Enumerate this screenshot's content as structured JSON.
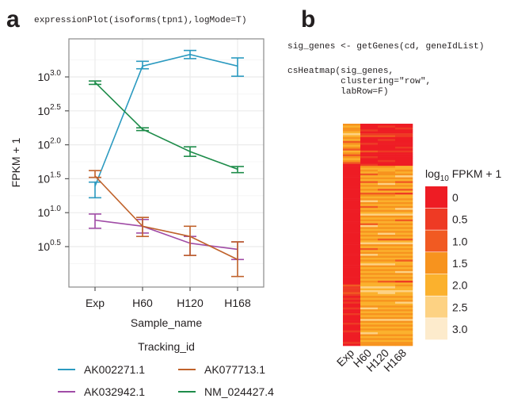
{
  "panel_a": {
    "letter": "a",
    "code": "expressionPlot(isoforms(tpn1),logMode=T)"
  },
  "panel_b": {
    "letter": "b",
    "code_line1": "sig_genes <- getGenes(cd, geneIdList)",
    "code_line2": "csHeatmap(sig_genes,",
    "code_line3": "          clustering=\"row\",",
    "code_line4": "          labRow=F)"
  },
  "chart_data": [
    {
      "type": "line",
      "title": "",
      "xlabel": "Sample_name",
      "ylabel": "FPKM + 1",
      "y_scale": "log10",
      "ylim_log10": [
        0.05,
        3.55
      ],
      "grid": true,
      "categories": [
        "Exp",
        "H60",
        "H120",
        "H168"
      ],
      "y_ticks": [
        {
          "value": 3.0,
          "label_base": "10",
          "label_exp": "3.0"
        },
        {
          "value": 2.5,
          "label_base": "10",
          "label_exp": "2.5"
        },
        {
          "value": 2.0,
          "label_base": "10",
          "label_exp": "2.0"
        },
        {
          "value": 1.5,
          "label_base": "10",
          "label_exp": "1.5"
        },
        {
          "value": 1.0,
          "label_base": "10",
          "label_exp": "1.0"
        },
        {
          "value": 0.5,
          "label_base": "10",
          "label_exp": "0.5"
        }
      ],
      "legend_title": "Tracking_id",
      "legend_position": "bottom",
      "series": [
        {
          "name": "AK002271.1",
          "color": "#2b9ac0",
          "log10_values": [
            1.39,
            3.16,
            3.33,
            3.16
          ],
          "log10_err_low": [
            1.22,
            3.12,
            3.27,
            3.01
          ],
          "log10_err_high": [
            1.45,
            3.23,
            3.39,
            3.28
          ]
        },
        {
          "name": "AK077713.1",
          "color": "#c0622b",
          "log10_values": [
            1.54,
            0.8,
            0.65,
            0.31
          ],
          "log10_err_low": [
            1.52,
            0.65,
            0.37,
            0.06
          ],
          "log10_err_high": [
            1.62,
            0.93,
            0.8,
            0.57
          ]
        },
        {
          "name": "AK032942.1",
          "color": "#a04ca6",
          "log10_values": [
            0.89,
            0.8,
            0.55,
            0.46
          ],
          "log10_err_low": [
            0.77,
            0.7,
            0.37,
            0.31
          ],
          "log10_err_high": [
            0.98,
            0.9,
            0.65,
            0.57
          ]
        },
        {
          "name": "NM_024427.4",
          "color": "#1e8c4a",
          "log10_values": [
            2.92,
            2.23,
            1.9,
            1.64
          ],
          "log10_err_low": [
            2.89,
            2.21,
            1.83,
            1.59
          ],
          "log10_err_high": [
            2.94,
            2.25,
            1.97,
            1.68
          ]
        }
      ]
    },
    {
      "type": "heatmap",
      "title": "",
      "columns": [
        "Exp",
        "H60",
        "H120",
        "H168"
      ],
      "legend_title_base": "log",
      "legend_title_sub": "10",
      "legend_title_rest": " FPKM + 1",
      "legend_levels": [
        {
          "label": "0",
          "color": "#ee1c24"
        },
        {
          "label": "0.5",
          "color": "#ee3a24"
        },
        {
          "label": "1.0",
          "color": "#f15a22"
        },
        {
          "label": "1.5",
          "color": "#f7931e"
        },
        {
          "label": "2.0",
          "color": "#fbb12d"
        },
        {
          "label": "2.5",
          "color": "#fdd283"
        },
        {
          "label": "3.0",
          "color": "#fdebcc"
        }
      ],
      "row_levels": [
        [
          3,
          0,
          0,
          0
        ],
        [
          4,
          0,
          1,
          0
        ],
        [
          3,
          0,
          0,
          1
        ],
        [
          3,
          1,
          0,
          0
        ],
        [
          4,
          0,
          0,
          0
        ],
        [
          5,
          1,
          1,
          1
        ],
        [
          4,
          2,
          2,
          1
        ],
        [
          3,
          0,
          0,
          0
        ],
        [
          4,
          0,
          1,
          0
        ],
        [
          2,
          0,
          0,
          0
        ],
        [
          3,
          1,
          0,
          0
        ],
        [
          4,
          0,
          0,
          0
        ],
        [
          3,
          0,
          0,
          1
        ],
        [
          2,
          0,
          0,
          0
        ],
        [
          4,
          2,
          1,
          1
        ],
        [
          3,
          0,
          0,
          0
        ],
        [
          2,
          0,
          0,
          0
        ],
        [
          3,
          1,
          0,
          0
        ],
        [
          4,
          0,
          0,
          0
        ],
        [
          3,
          0,
          1,
          0
        ],
        [
          2,
          0,
          0,
          0
        ],
        [
          0,
          1,
          0,
          0
        ],
        [
          0,
          3,
          3,
          4
        ],
        [
          0,
          4,
          4,
          4
        ],
        [
          0,
          3,
          4,
          3
        ],
        [
          0,
          4,
          3,
          4
        ],
        [
          0,
          2,
          3,
          3
        ],
        [
          0,
          4,
          4,
          5
        ],
        [
          0,
          3,
          3,
          3
        ],
        [
          0,
          4,
          4,
          4
        ],
        [
          0,
          2,
          3,
          2
        ],
        [
          0,
          4,
          5,
          4
        ],
        [
          0,
          3,
          3,
          3
        ],
        [
          0,
          4,
          4,
          4
        ],
        [
          0,
          3,
          2,
          2
        ],
        [
          0,
          4,
          4,
          4
        ],
        [
          0,
          2,
          2,
          1
        ],
        [
          0,
          3,
          3,
          4
        ],
        [
          0,
          4,
          4,
          4
        ],
        [
          0,
          3,
          3,
          3
        ],
        [
          0,
          5,
          4,
          4
        ],
        [
          0,
          3,
          3,
          3
        ],
        [
          0,
          4,
          4,
          4
        ],
        [
          0,
          2,
          3,
          3
        ],
        [
          0,
          4,
          4,
          5
        ],
        [
          0,
          3,
          3,
          3
        ],
        [
          0,
          4,
          4,
          4
        ],
        [
          0,
          5,
          5,
          5
        ],
        [
          0,
          3,
          3,
          3
        ],
        [
          0,
          4,
          4,
          4
        ],
        [
          0,
          3,
          3,
          2
        ],
        [
          0,
          4,
          4,
          4
        ],
        [
          0,
          2,
          3,
          3
        ],
        [
          0,
          5,
          4,
          4
        ],
        [
          0,
          3,
          3,
          3
        ],
        [
          0,
          4,
          4,
          4
        ],
        [
          0,
          3,
          3,
          3
        ],
        [
          0,
          4,
          5,
          4
        ],
        [
          0,
          3,
          3,
          3
        ],
        [
          0,
          4,
          4,
          4
        ],
        [
          0,
          3,
          2,
          2
        ],
        [
          0,
          4,
          4,
          4
        ],
        [
          0,
          5,
          5,
          5
        ],
        [
          0,
          3,
          3,
          3
        ],
        [
          0,
          4,
          4,
          4
        ],
        [
          0,
          2,
          3,
          3
        ],
        [
          0,
          4,
          4,
          4
        ],
        [
          0,
          3,
          3,
          3
        ],
        [
          0,
          5,
          4,
          4
        ],
        [
          0,
          3,
          3,
          3
        ],
        [
          0,
          4,
          4,
          4
        ],
        [
          0,
          3,
          3,
          2
        ],
        [
          0,
          4,
          4,
          4
        ],
        [
          0,
          5,
          5,
          4
        ],
        [
          0,
          3,
          3,
          3
        ],
        [
          0,
          4,
          4,
          4
        ],
        [
          0,
          3,
          3,
          3
        ],
        [
          0,
          4,
          4,
          5
        ],
        [
          0,
          3,
          3,
          3
        ],
        [
          0,
          4,
          4,
          4
        ],
        [
          0,
          3,
          3,
          3
        ],
        [
          0,
          4,
          4,
          4
        ],
        [
          0,
          3,
          2,
          1
        ],
        [
          0,
          4,
          4,
          4
        ],
        [
          2,
          4,
          4,
          3
        ],
        [
          1,
          5,
          5,
          4
        ],
        [
          1,
          4,
          4,
          4
        ],
        [
          1,
          5,
          5,
          5
        ],
        [
          2,
          4,
          5,
          4
        ],
        [
          1,
          4,
          4,
          4
        ],
        [
          0,
          3,
          3,
          3
        ],
        [
          1,
          4,
          4,
          4
        ],
        [
          0,
          3,
          3,
          3
        ],
        [
          1,
          4,
          4,
          5
        ],
        [
          0,
          4,
          4,
          4
        ],
        [
          0,
          3,
          3,
          3
        ],
        [
          1,
          5,
          4,
          4
        ],
        [
          0,
          3,
          3,
          3
        ],
        [
          0,
          4,
          4,
          4
        ],
        [
          1,
          3,
          3,
          3
        ],
        [
          0,
          4,
          4,
          4
        ],
        [
          0,
          3,
          3,
          3
        ],
        [
          0,
          5,
          5,
          5
        ],
        [
          0,
          3,
          3,
          3
        ],
        [
          1,
          4,
          4,
          4
        ],
        [
          0,
          3,
          3,
          3
        ],
        [
          0,
          4,
          4,
          4
        ],
        [
          0,
          3,
          3,
          3
        ],
        [
          1,
          4,
          4,
          4
        ],
        [
          0,
          5,
          4,
          4
        ],
        [
          0,
          3,
          3,
          3
        ],
        [
          0,
          4,
          4,
          4
        ],
        [
          0,
          3,
          3,
          3
        ],
        [
          0,
          4,
          4,
          4
        ],
        [
          1,
          3,
          3,
          3
        ],
        [
          0,
          3,
          3,
          3
        ]
      ]
    }
  ]
}
